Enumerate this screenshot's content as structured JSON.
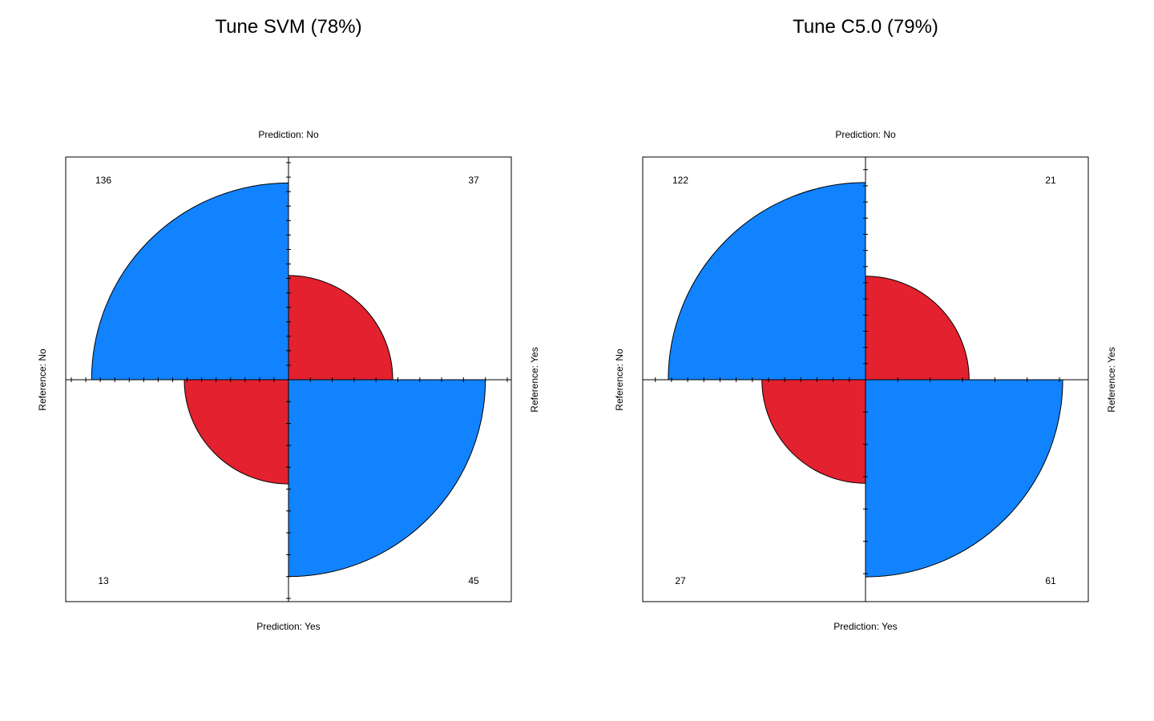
{
  "chart_data": [
    {
      "type": "fourfold",
      "title": "Tune SVM (78%)",
      "top_label": "Prediction: No",
      "bottom_label": "Prediction: Yes",
      "left_label": "Reference: No",
      "right_label": "Reference: Yes",
      "counts": {
        "top_left": 136,
        "top_right": 37,
        "bottom_left": 13,
        "bottom_right": 45
      },
      "colors": {
        "diagonal": "#1283ff",
        "off_diagonal": "#e3212f"
      }
    },
    {
      "type": "fourfold",
      "title": "Tune C5.0 (79%)",
      "top_label": "Prediction: No",
      "bottom_label": "Prediction: Yes",
      "left_label": "Reference: No",
      "right_label": "Reference: Yes",
      "counts": {
        "top_left": 122,
        "top_right": 21,
        "bottom_left": 27,
        "bottom_right": 61
      },
      "colors": {
        "diagonal": "#1283ff",
        "off_diagonal": "#e3212f"
      }
    }
  ]
}
